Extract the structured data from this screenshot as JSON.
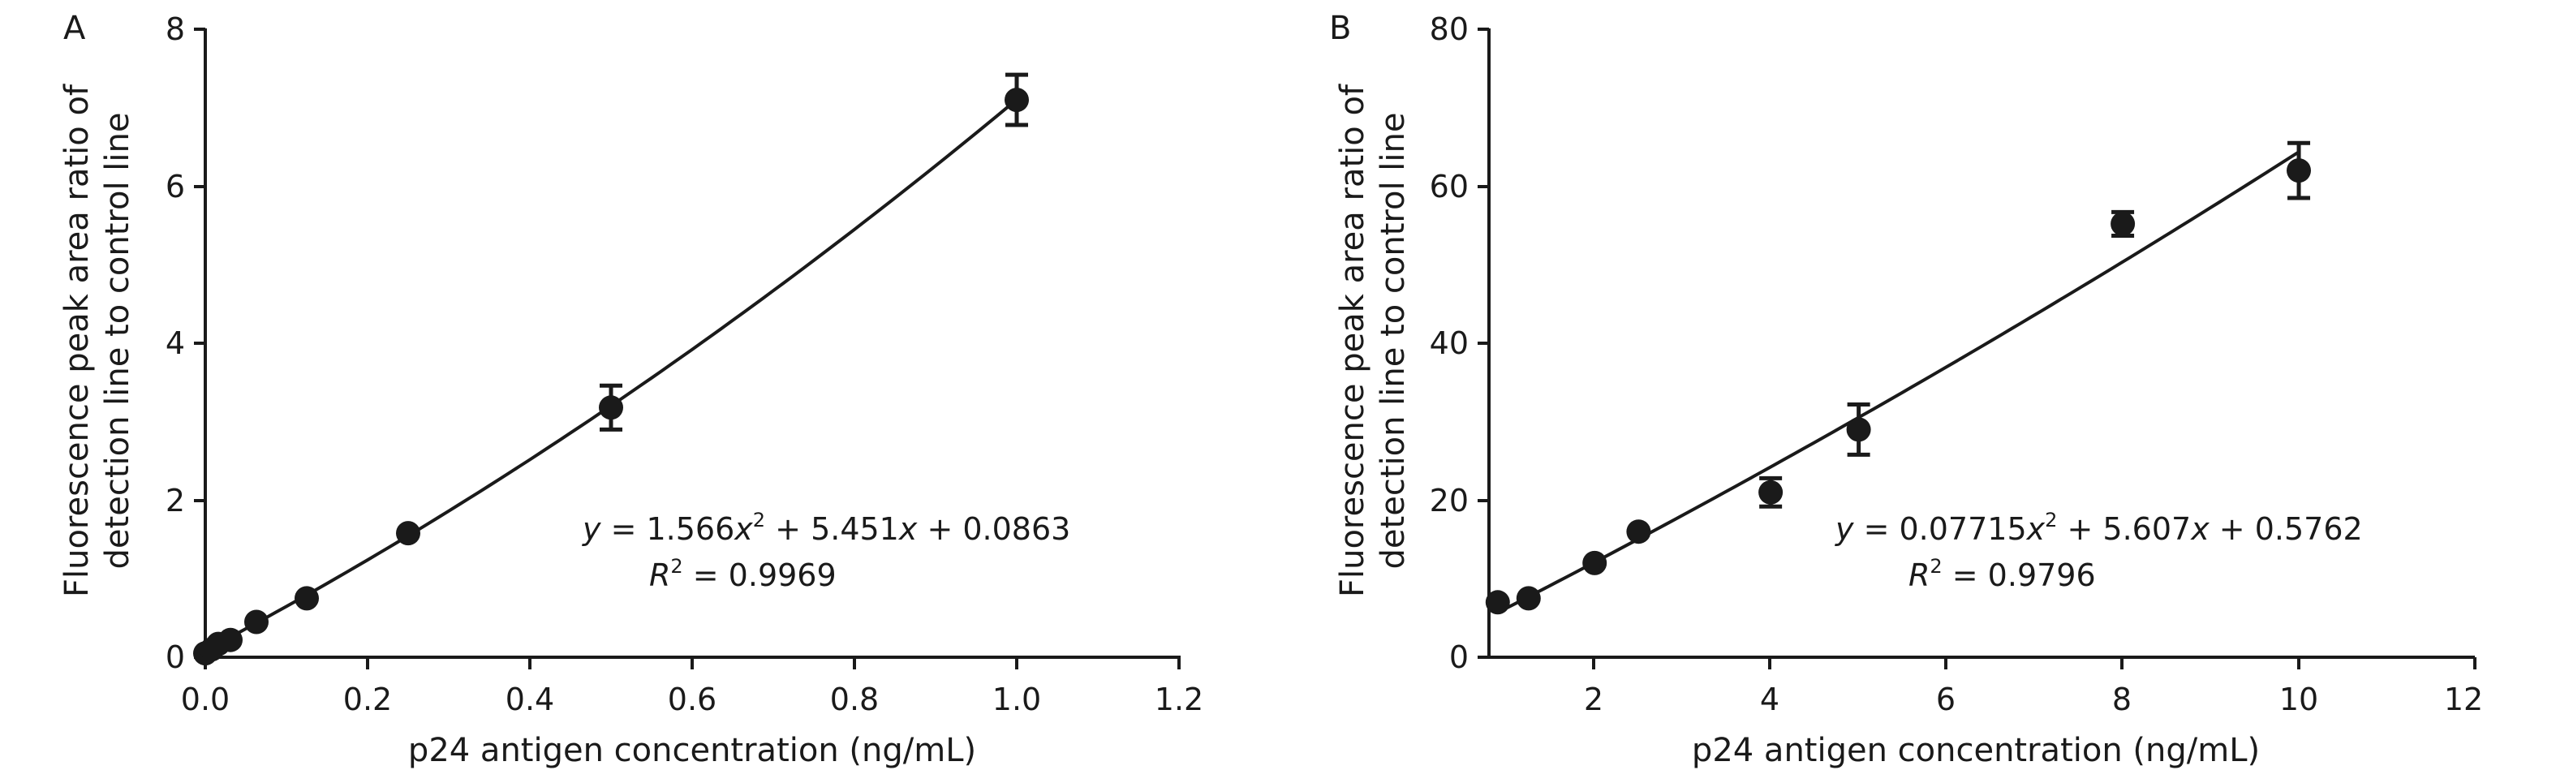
{
  "chart_data": [
    {
      "type": "scatter",
      "panel_label": "A",
      "xlabel": "p24 antigen concentration (ng/mL)",
      "ylabel_lines": [
        "Fluorescence peak area ratio of",
        "detection line to control line"
      ],
      "xlim": [
        0,
        1.2
      ],
      "ylim": [
        0,
        8
      ],
      "xticks": [
        "0.0",
        "0.2",
        "0.4",
        "0.6",
        "0.8",
        "1.0",
        "1.2"
      ],
      "yticks": [
        "0",
        "2",
        "4",
        "6",
        "8"
      ],
      "points": [
        {
          "x": 0.0,
          "y": 0.05,
          "err": 0
        },
        {
          "x": 0.008,
          "y": 0.1,
          "err": 0
        },
        {
          "x": 0.016,
          "y": 0.17,
          "err": 0
        },
        {
          "x": 0.031,
          "y": 0.22,
          "err": 0
        },
        {
          "x": 0.063,
          "y": 0.45,
          "err": 0
        },
        {
          "x": 0.125,
          "y": 0.75,
          "err": 0
        },
        {
          "x": 0.25,
          "y": 1.58,
          "err": 0
        },
        {
          "x": 0.5,
          "y": 3.18,
          "err": 0.28
        },
        {
          "x": 1.0,
          "y": 7.1,
          "err": 0.32
        }
      ],
      "fit": {
        "a": 1.566,
        "b": 5.451,
        "c": 0.0863,
        "x_range": [
          0,
          1.0
        ]
      },
      "equation": {
        "y_var": "y",
        "eq_part1": " = 1.566",
        "x_var1": "x",
        "sup2": "2",
        "eq_part2": " + 5.451",
        "x_var2": "x",
        "eq_part3": " + 0.0863",
        "r_var": "R",
        "r_sup": "2",
        "r_value": " = 0.9969"
      },
      "grid": false,
      "legend": "none"
    },
    {
      "type": "scatter",
      "panel_label": "B",
      "xlabel": "p24 antigen concentration (ng/mL)",
      "ylabel_lines": [
        "Fluorescence peak area ratio of",
        "detection line to control line"
      ],
      "xlim": [
        0.8,
        12
      ],
      "ylim": [
        0,
        80
      ],
      "xticks": [
        "2",
        "4",
        "6",
        "8",
        "10",
        "12"
      ],
      "yticks": [
        "0",
        "20",
        "40",
        "60",
        "80"
      ],
      "points": [
        {
          "x": 0.9,
          "y": 7.0,
          "err": 0
        },
        {
          "x": 1.25,
          "y": 7.5,
          "err": 0
        },
        {
          "x": 2.0,
          "y": 12.0,
          "err": 0
        },
        {
          "x": 2.5,
          "y": 16.0,
          "err": 0
        },
        {
          "x": 4.0,
          "y": 21.0,
          "err": 1.8
        },
        {
          "x": 5.0,
          "y": 29.0,
          "err": 3.2
        },
        {
          "x": 8.0,
          "y": 55.2,
          "err": 1.5
        },
        {
          "x": 10.0,
          "y": 62.0,
          "err": 3.5
        }
      ],
      "fit": {
        "a": 0.07715,
        "b": 5.607,
        "c": 0.5762,
        "x_range": [
          1.0,
          10.0
        ]
      },
      "equation": {
        "y_var": "y",
        "eq_part1": " = 0.07715",
        "x_var1": "x",
        "sup2": "2",
        "eq_part2": " + 5.607",
        "x_var2": "x",
        "eq_part3": " + 0.5762",
        "r_var": "R",
        "r_sup": "2",
        "r_value": " = 0.9796"
      },
      "grid": false,
      "legend": "none"
    }
  ]
}
